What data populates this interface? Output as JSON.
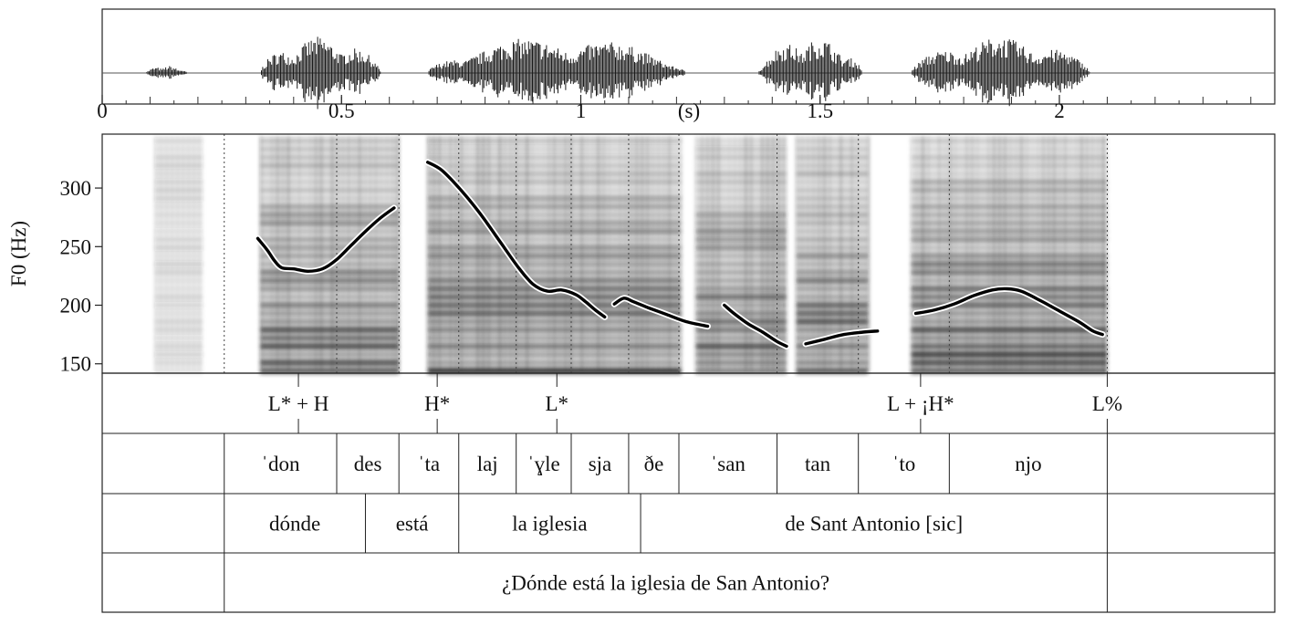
{
  "chart_data": {
    "type": "line",
    "ylabel": "F0 (Hz)",
    "ylim": [
      142,
      346
    ],
    "yticks": [
      "300",
      "250",
      "200",
      "150"
    ],
    "ytick_values": [
      300,
      250,
      200,
      150
    ],
    "time_unit_label": "(s)",
    "xlim": [
      0,
      2.45
    ],
    "xticks": [
      "0",
      "0.5",
      "1",
      "1.5",
      "2"
    ],
    "xtick_values": [
      0,
      0.5,
      1,
      1.5,
      2
    ],
    "waveform_segments": [
      [
        0.09,
        0.19
      ],
      [
        0.33,
        0.62
      ],
      [
        0.68,
        1.3
      ],
      [
        1.37,
        1.62
      ],
      [
        1.69,
        2.12
      ]
    ],
    "spectrogram_blocks": [
      [
        0.11,
        0.21
      ],
      [
        0.33,
        0.62
      ],
      [
        0.68,
        1.21
      ],
      [
        1.24,
        1.43
      ],
      [
        1.45,
        1.6
      ],
      [
        1.69,
        2.1
      ]
    ],
    "pitch_series": [
      [
        [
          0.325,
          257
        ],
        [
          0.345,
          247
        ],
        [
          0.36,
          238
        ],
        [
          0.375,
          232
        ],
        [
          0.4,
          231
        ],
        [
          0.43,
          229
        ],
        [
          0.46,
          231
        ],
        [
          0.49,
          239
        ],
        [
          0.52,
          251
        ],
        [
          0.55,
          263
        ],
        [
          0.58,
          274
        ],
        [
          0.61,
          283
        ]
      ],
      [
        [
          0.68,
          322
        ],
        [
          0.71,
          315
        ],
        [
          0.75,
          298
        ],
        [
          0.79,
          278
        ],
        [
          0.83,
          255
        ],
        [
          0.87,
          232
        ],
        [
          0.9,
          218
        ],
        [
          0.93,
          212
        ],
        [
          0.96,
          213
        ],
        [
          0.99,
          209
        ],
        [
          1.01,
          203
        ],
        [
          1.03,
          196
        ],
        [
          1.05,
          190
        ]
      ],
      [
        [
          1.07,
          201
        ],
        [
          1.09,
          206
        ],
        [
          1.11,
          203
        ],
        [
          1.14,
          198
        ],
        [
          1.18,
          192
        ],
        [
          1.22,
          186
        ],
        [
          1.265,
          182
        ]
      ],
      [
        [
          1.3,
          200
        ],
        [
          1.32,
          193
        ],
        [
          1.35,
          184
        ],
        [
          1.38,
          177
        ],
        [
          1.41,
          169
        ],
        [
          1.43,
          165
        ]
      ],
      [
        [
          1.47,
          167
        ],
        [
          1.51,
          171
        ],
        [
          1.55,
          175
        ],
        [
          1.59,
          177
        ],
        [
          1.62,
          178
        ]
      ],
      [
        [
          1.7,
          193
        ],
        [
          1.74,
          196
        ],
        [
          1.78,
          201
        ],
        [
          1.82,
          208
        ],
        [
          1.86,
          213
        ],
        [
          1.89,
          214
        ],
        [
          1.92,
          212
        ],
        [
          1.96,
          204
        ],
        [
          2.0,
          195
        ],
        [
          2.04,
          186
        ],
        [
          2.07,
          178
        ],
        [
          2.09,
          175
        ]
      ]
    ],
    "tones": [
      {
        "label": "L* + H",
        "time": 0.41
      },
      {
        "label": "H*",
        "time": 0.7
      },
      {
        "label": "L*",
        "time": 0.95
      },
      {
        "label": "L + ¡H*",
        "time": 1.71
      },
      {
        "label": "L%",
        "time": 2.1
      }
    ],
    "syllable_tier": {
      "boundaries": [
        0.255,
        0.49,
        0.62,
        0.745,
        0.865,
        0.98,
        1.1,
        1.205,
        1.41,
        1.58,
        1.77,
        2.1
      ],
      "labels": [
        "ˈdon",
        "des",
        "ˈta",
        "laj",
        "ˈɣle",
        "sja",
        "ðe",
        "ˈsan",
        "tan",
        "ˈto",
        "njo"
      ]
    },
    "word_tier": {
      "boundaries": [
        0.255,
        0.55,
        0.745,
        1.125,
        2.1
      ],
      "labels": [
        "dónde",
        "está",
        "la iglesia",
        "de Sant Antonio [sic]"
      ]
    },
    "sentence_tier": {
      "boundaries": [
        0.255,
        2.1
      ],
      "labels": [
        "¿Dónde está la iglesia de San Antonio?"
      ]
    }
  }
}
